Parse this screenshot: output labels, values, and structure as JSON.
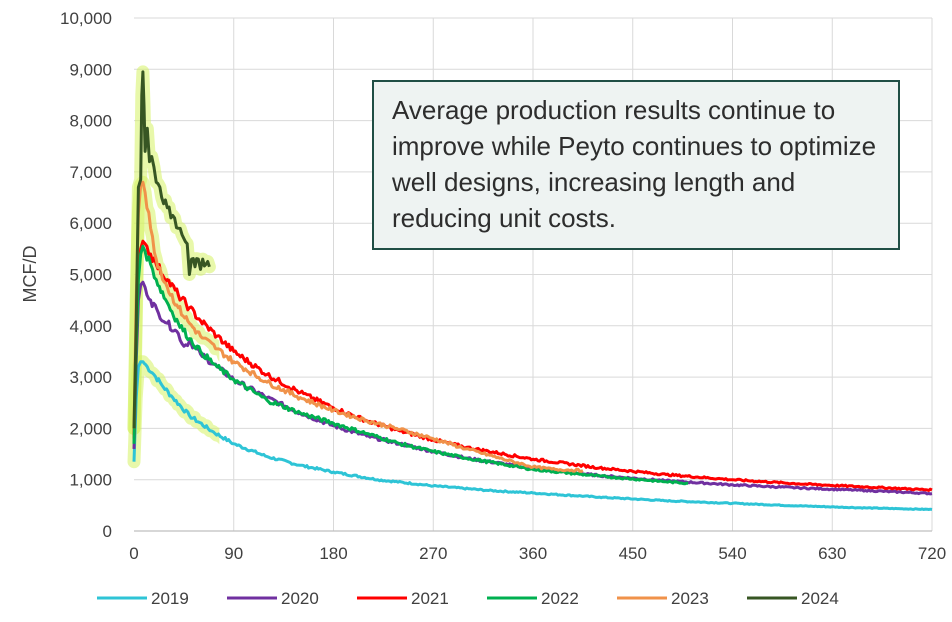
{
  "chart_data": {
    "type": "line",
    "title": "",
    "xlabel": "",
    "ylabel": "MCF/D",
    "xlim": [
      0,
      720
    ],
    "ylim": [
      0,
      10000
    ],
    "xticks": [
      "0",
      "90",
      "180",
      "270",
      "360",
      "450",
      "540",
      "630",
      "720"
    ],
    "yticks": [
      "0",
      "1,000",
      "2,000",
      "3,000",
      "4,000",
      "5,000",
      "6,000",
      "7,000",
      "8,000",
      "9,000",
      "10,000"
    ],
    "grid": true,
    "legend_position": "bottom",
    "annotation": "Average production results continue to improve while Peyto continues to optimize well designs, increasing length and reducing unit costs.",
    "series": [
      {
        "name": "2019",
        "color": "#2ec4d6",
        "x": [
          0,
          2,
          4,
          6,
          8,
          12,
          18,
          25,
          35,
          50,
          70,
          90,
          120,
          150,
          180,
          220,
          270,
          320,
          360,
          420,
          480,
          540,
          600,
          660,
          720
        ],
        "y": [
          1350,
          2600,
          3200,
          3300,
          3300,
          3200,
          3050,
          2850,
          2600,
          2250,
          1950,
          1700,
          1450,
          1280,
          1150,
          1000,
          880,
          790,
          740,
          660,
          590,
          540,
          490,
          450,
          420
        ]
      },
      {
        "name": "2020",
        "color": "#7030a0",
        "x": [
          0,
          2,
          4,
          6,
          8,
          10,
          15,
          22,
          30,
          40,
          45,
          50,
          60,
          75,
          90,
          120,
          150,
          180,
          210,
          240,
          270,
          300,
          360,
          420,
          480,
          540,
          600,
          660,
          720
        ],
        "y": [
          1600,
          3300,
          4500,
          4800,
          4850,
          4750,
          4500,
          4250,
          4050,
          3850,
          3600,
          3700,
          3450,
          3200,
          2950,
          2600,
          2300,
          2050,
          1850,
          1700,
          1550,
          1420,
          1220,
          1080,
          980,
          900,
          840,
          790,
          730
        ]
      },
      {
        "name": "2021",
        "color": "#ff0000",
        "x": [
          0,
          2,
          4,
          6,
          8,
          10,
          15,
          20,
          30,
          40,
          50,
          60,
          75,
          90,
          120,
          150,
          180,
          210,
          240,
          270,
          300,
          360,
          420,
          480,
          540,
          600,
          660,
          720
        ],
        "y": [
          1800,
          3800,
          5000,
          5500,
          5650,
          5600,
          5400,
          5200,
          4900,
          4600,
          4350,
          4100,
          3800,
          3500,
          3050,
          2700,
          2400,
          2150,
          1950,
          1780,
          1630,
          1400,
          1230,
          1100,
          1000,
          920,
          860,
          800
        ]
      },
      {
        "name": "2022",
        "color": "#00b050",
        "x": [
          0,
          2,
          4,
          6,
          8,
          10,
          15,
          20,
          30,
          40,
          50,
          60,
          75,
          90,
          120,
          150,
          180,
          210,
          240,
          270,
          300,
          360,
          420,
          480,
          500
        ],
        "y": [
          1700,
          3600,
          4900,
          5400,
          5550,
          5450,
          5200,
          4900,
          4450,
          4050,
          3750,
          3500,
          3200,
          2950,
          2550,
          2300,
          2100,
          1900,
          1700,
          1550,
          1420,
          1200,
          1070,
          960,
          930
        ]
      },
      {
        "name": "2023",
        "color": "#f0924a",
        "x": [
          0,
          2,
          4,
          6,
          8,
          10,
          15,
          20,
          30,
          40,
          50,
          60,
          75,
          90,
          120,
          150,
          180,
          210,
          240,
          270,
          300,
          330,
          360,
          380,
          405
        ],
        "y": [
          2000,
          4500,
          6200,
          6750,
          6800,
          6600,
          5900,
          5300,
          4750,
          4350,
          4050,
          3800,
          3550,
          3300,
          2900,
          2600,
          2350,
          2150,
          1980,
          1800,
          1600,
          1420,
          1250,
          1200,
          1180
        ]
      },
      {
        "name": "2024",
        "color": "#375623",
        "x": [
          0,
          2,
          4,
          6,
          7,
          8,
          9,
          10,
          12,
          14,
          16,
          18,
          20,
          25,
          30,
          35,
          40,
          45,
          48,
          50,
          52,
          55,
          58,
          60,
          62,
          65,
          68
        ],
        "y": [
          2000,
          4000,
          6700,
          6850,
          8500,
          8950,
          8300,
          7400,
          7850,
          7200,
          7300,
          7100,
          6800,
          6500,
          6300,
          6150,
          5900,
          5700,
          5600,
          5000,
          5300,
          5150,
          5300,
          5100,
          5300,
          5200,
          5150
        ]
      }
    ]
  }
}
